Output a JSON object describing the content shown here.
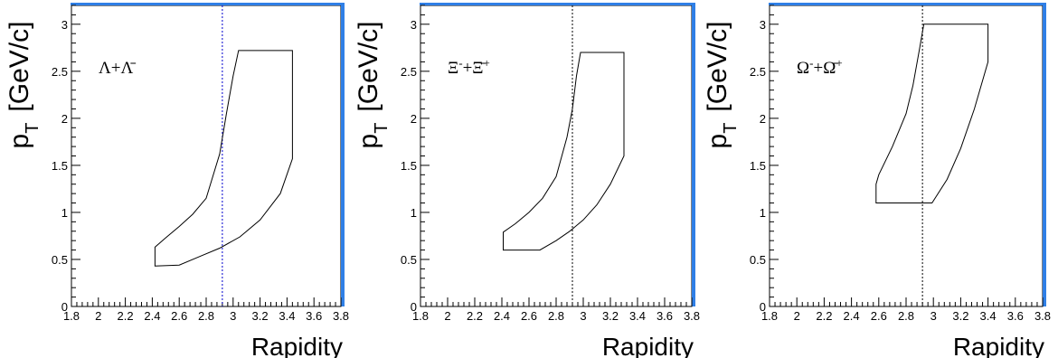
{
  "chart_data": [
    {
      "type": "line",
      "label_parts": [
        {
          "text": "Λ",
          "mod": ""
        },
        {
          "text": "+",
          "mod": ""
        },
        {
          "text": "Λ̄",
          "mod": ""
        }
      ],
      "xlabel": "Rapidity",
      "ylabel": "p",
      "ylabel_sub": "T",
      "ylabel_unit": "[GeV/c]",
      "xlim": [
        1.8,
        3.8
      ],
      "ylim": [
        0,
        3.2
      ],
      "x_ticks": [
        "1.8",
        "2",
        "2.2",
        "2.4",
        "2.6",
        "2.8",
        "3",
        "3.2",
        "3.4",
        "3.6",
        "3.8"
      ],
      "y_ticks": [
        "0",
        "0.5",
        "1",
        "1.5",
        "2",
        "2.5",
        "3"
      ],
      "reference_line": {
        "x": 2.92,
        "color": "#0000cc"
      },
      "series": [
        {
          "x": [
            2.42,
            2.42,
            2.6,
            2.75,
            2.9,
            3.05,
            3.2,
            3.35,
            3.44,
            3.44,
            3.04,
            3.0,
            2.95,
            2.9,
            2.8,
            2.7,
            2.6,
            2.5,
            2.42
          ],
          "y": [
            0.43,
            0.43,
            0.44,
            0.53,
            0.62,
            0.74,
            0.92,
            1.2,
            1.57,
            2.72,
            2.72,
            2.45,
            2.05,
            1.62,
            1.15,
            0.98,
            0.85,
            0.73,
            0.63
          ]
        }
      ]
    },
    {
      "type": "line",
      "label_parts": [
        {
          "text": "Ξ",
          "mod": ""
        },
        {
          "text": "-",
          "mod": "sup"
        },
        {
          "text": "+",
          "mod": ""
        },
        {
          "text": "Ξ̄",
          "mod": ""
        },
        {
          "text": "+",
          "mod": "sup"
        }
      ],
      "xlabel": "Rapidity",
      "ylabel": "p",
      "ylabel_sub": "T",
      "ylabel_unit": "[GeV/c]",
      "xlim": [
        1.8,
        3.8
      ],
      "ylim": [
        0,
        3.2
      ],
      "x_ticks": [
        "1.8",
        "2",
        "2.2",
        "2.4",
        "2.6",
        "2.8",
        "3",
        "3.2",
        "3.4",
        "3.6",
        "3.8"
      ],
      "y_ticks": [
        "0",
        "0.5",
        "1",
        "1.5",
        "2",
        "2.5",
        "3"
      ],
      "reference_line": {
        "x": 2.92,
        "color": "#000000"
      },
      "series": [
        {
          "x": [
            2.41,
            2.41,
            2.68,
            2.8,
            2.9,
            3.0,
            3.1,
            3.2,
            3.3,
            3.3,
            2.98,
            2.95,
            2.92,
            2.88,
            2.8,
            2.7,
            2.6,
            2.5,
            2.41
          ],
          "y": [
            0.6,
            0.6,
            0.6,
            0.7,
            0.8,
            0.92,
            1.08,
            1.3,
            1.6,
            2.7,
            2.7,
            2.45,
            2.1,
            1.8,
            1.38,
            1.15,
            1.0,
            0.88,
            0.79
          ]
        }
      ]
    },
    {
      "type": "line",
      "label_parts": [
        {
          "text": "Ω",
          "mod": ""
        },
        {
          "text": "-",
          "mod": "sup"
        },
        {
          "text": "+",
          "mod": ""
        },
        {
          "text": "Ω̄",
          "mod": ""
        },
        {
          "text": "+",
          "mod": "sup"
        }
      ],
      "xlabel": "Rapidity",
      "ylabel": "p",
      "ylabel_sub": "T",
      "ylabel_unit": "[GeV/c]",
      "xlim": [
        1.8,
        3.8
      ],
      "ylim": [
        0,
        3.2
      ],
      "x_ticks": [
        "1.8",
        "2",
        "2.2",
        "2.4",
        "2.6",
        "2.8",
        "3",
        "3.2",
        "3.4",
        "3.6",
        "3.8"
      ],
      "y_ticks": [
        "0",
        "0.5",
        "1",
        "1.5",
        "2",
        "2.5",
        "3"
      ],
      "reference_line": {
        "x": 2.92,
        "color": "#000000"
      },
      "series": [
        {
          "x": [
            2.58,
            2.58,
            2.99,
            3.1,
            3.2,
            3.3,
            3.4,
            3.4,
            2.93,
            2.9,
            2.85,
            2.8,
            2.7,
            2.6,
            2.58
          ],
          "y": [
            1.1,
            1.1,
            1.1,
            1.35,
            1.68,
            2.1,
            2.6,
            3.0,
            3.0,
            2.75,
            2.35,
            2.05,
            1.7,
            1.4,
            1.3
          ]
        }
      ]
    }
  ]
}
